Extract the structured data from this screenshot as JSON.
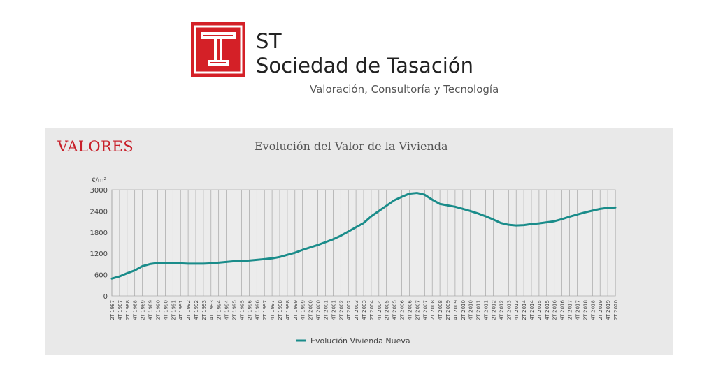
{
  "header": {
    "brand_short": "ST",
    "brand_name": "Sociedad de Tasación",
    "tagline": "Valoración, Consultoría y Tecnología",
    "logo_color": "#d42027"
  },
  "section": {
    "label": "VALORES",
    "label_color": "#c8202a"
  },
  "chart_data": {
    "type": "line",
    "title": "Evolución del Valor de la Vivienda",
    "ylabel": "€/m²",
    "xlabel": "",
    "ylim": [
      0,
      3000
    ],
    "yticks": [
      0,
      600,
      1200,
      1800,
      2400,
      3000
    ],
    "grid": "vertical lines at every half-year period",
    "legend_position": "bottom-center",
    "x_tick_labels": [
      "2T 1987",
      "4T 1987",
      "2T 1988",
      "4T 1988",
      "2T 1989",
      "4T 1989",
      "2T 1990",
      "4T 1990",
      "2T 1991",
      "4T 1991",
      "2T 1992",
      "4T 1992",
      "2T 1993",
      "4T 1993",
      "2T 1994",
      "4T 1994",
      "2T 1995",
      "4T 1995",
      "2T 1996",
      "4T 1996",
      "2T 1997",
      "4T 1997",
      "2T 1998",
      "4T 1998",
      "2T 1999",
      "4T 1999",
      "2T 2000",
      "4T 2000",
      "2T 2001",
      "4T 2001",
      "2T 2002",
      "4T 2002",
      "2T 2003",
      "4T 2003",
      "2T 2004",
      "4T 2004",
      "2T 2005",
      "4T 2005",
      "2T 2006",
      "4T 2006",
      "2T 2007",
      "4T 2007",
      "2T 2008",
      "4T 2008",
      "2T 2009",
      "4T 2009",
      "2T 2010",
      "4T 2010",
      "2T 2011",
      "4T 2011",
      "2T 2012",
      "4T 2012",
      "2T 2013",
      "4T 2013",
      "2T 2014",
      "4T 2014",
      "2T 2015",
      "4T 2015",
      "2T 2016",
      "4T 2016",
      "2T 2017",
      "4T 2017",
      "2T 2018",
      "4T 2018",
      "2T 2019",
      "4T 2019",
      "2T 2020"
    ],
    "series": [
      {
        "name": "Evolución Vivienda Nueva",
        "color": "#1a8c8a",
        "x": [
          "2T 1987",
          "4T 1987",
          "2T 1988",
          "4T 1988",
          "2T 1989",
          "4T 1989",
          "2T 1990",
          "4T 1990",
          "2T 1991",
          "4T 1991",
          "2T 1992",
          "4T 1992",
          "2T 1993",
          "4T 1993",
          "2T 1994",
          "4T 1994",
          "2T 1995",
          "4T 1995",
          "2T 1996",
          "4T 1996",
          "2T 1997",
          "4T 1997",
          "2T 1998",
          "4T 1998",
          "2T 1999",
          "4T 1999",
          "2T 2000",
          "4T 2000",
          "2T 2001",
          "4T 2001",
          "2T 2002",
          "4T 2002",
          "2T 2003",
          "4T 2003",
          "2T 2004",
          "4T 2004",
          "2T 2005",
          "4T 2005",
          "2T 2006",
          "4T 2006",
          "2T 2007",
          "4T 2007",
          "2T 2008",
          "4T 2008",
          "2T 2009",
          "4T 2009",
          "2T 2010",
          "4T 2010",
          "2T 2011",
          "4T 2011",
          "2T 2012",
          "4T 2012",
          "2T 2013",
          "4T 2013",
          "2T 2014",
          "4T 2014",
          "2T 2015",
          "4T 2015",
          "2T 2016",
          "4T 2016",
          "2T 2017",
          "4T 2017",
          "2T 2018",
          "4T 2018",
          "2T 2019",
          "4T 2019",
          "2T 2020"
        ],
        "values": [
          490,
          550,
          640,
          720,
          840,
          900,
          930,
          930,
          930,
          920,
          910,
          910,
          910,
          920,
          940,
          960,
          980,
          990,
          1000,
          1020,
          1040,
          1060,
          1100,
          1160,
          1220,
          1300,
          1370,
          1440,
          1520,
          1600,
          1700,
          1820,
          1940,
          2060,
          2250,
          2400,
          2550,
          2700,
          2800,
          2890,
          2910,
          2860,
          2720,
          2600,
          2560,
          2520,
          2460,
          2400,
          2330,
          2250,
          2160,
          2060,
          2010,
          1990,
          2000,
          2030,
          2050,
          2080,
          2110,
          2170,
          2240,
          2300,
          2360,
          2410,
          2460,
          2490,
          2500
        ]
      }
    ]
  }
}
